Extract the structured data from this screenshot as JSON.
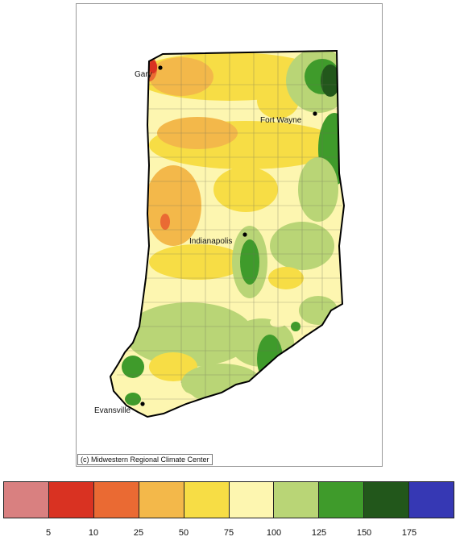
{
  "map": {
    "credit": "(c) Midwestern Regional Climate Center",
    "cities": [
      {
        "id": "gary",
        "label": "Gary"
      },
      {
        "id": "fort-wayne",
        "label": "Fort Wayne"
      },
      {
        "id": "indianapolis",
        "label": "Indianapolis"
      },
      {
        "id": "evansville",
        "label": "Evansville"
      }
    ]
  },
  "legend": {
    "colors": [
      "#d98080",
      "#d93222",
      "#ea6a33",
      "#f3b84a",
      "#f7dd45",
      "#fdf6b0",
      "#b9d576",
      "#3f9b2b",
      "#22571b",
      "#3638b4"
    ],
    "ticks": [
      "5",
      "10",
      "25",
      "50",
      "75",
      "100",
      "125",
      "150",
      "175"
    ]
  }
}
